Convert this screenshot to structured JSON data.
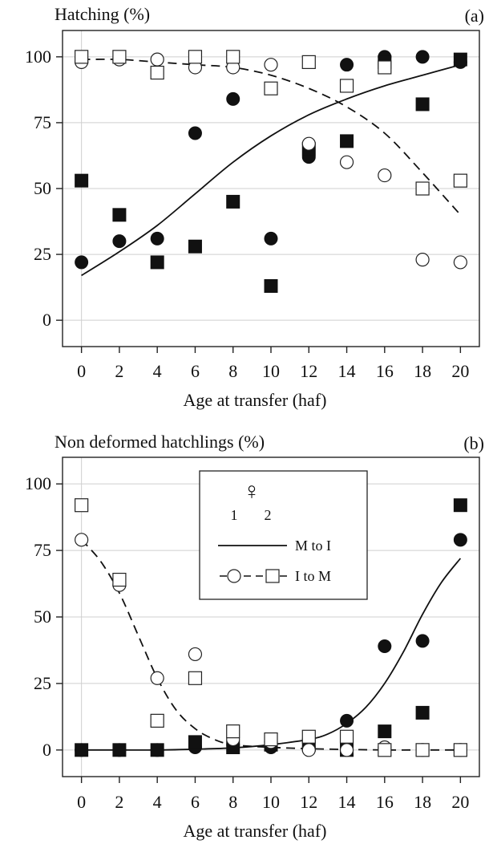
{
  "chart_data": [
    {
      "type": "scatter",
      "panel_label": "(a)",
      "title": "Hatching (%)",
      "xlabel": "Age at transfer (haf)",
      "ylabel": "",
      "xlim": [
        -1,
        21
      ],
      "ylim": [
        -10,
        110
      ],
      "xticks": [
        0,
        2,
        4,
        6,
        8,
        10,
        12,
        14,
        16,
        18,
        20
      ],
      "yticks": [
        0,
        25,
        50,
        75,
        100
      ],
      "grid": true,
      "series": [
        {
          "marker": "filled-circle",
          "group": "M to I",
          "sex": "1",
          "x": [
            0,
            2,
            4,
            6,
            8,
            10,
            12,
            14,
            16,
            18,
            20
          ],
          "y": [
            22,
            30,
            31,
            71,
            84,
            31,
            62,
            97,
            100,
            100,
            98
          ]
        },
        {
          "marker": "filled-square",
          "group": "M to I",
          "sex": "2",
          "x": [
            0,
            2,
            4,
            6,
            8,
            10,
            12,
            14,
            16,
            18,
            20
          ],
          "y": [
            53,
            40,
            22,
            28,
            45,
            13,
            65,
            68,
            98,
            82,
            99
          ]
        },
        {
          "marker": "open-circle",
          "group": "I to M",
          "sex": "1",
          "x": [
            0,
            2,
            4,
            6,
            8,
            10,
            12,
            14,
            16,
            18,
            20
          ],
          "y": [
            98,
            99,
            99,
            96,
            96,
            97,
            67,
            60,
            55,
            23,
            22
          ]
        },
        {
          "marker": "open-square",
          "group": "I to M",
          "sex": "2",
          "x": [
            0,
            2,
            4,
            6,
            8,
            10,
            12,
            14,
            16,
            18,
            20
          ],
          "y": [
            100,
            100,
            94,
            100,
            100,
            88,
            98,
            89,
            96,
            50,
            53
          ]
        }
      ],
      "fits": [
        {
          "style": "solid",
          "group": "M to I",
          "x": [
            0,
            2,
            4,
            6,
            8,
            10,
            12,
            14,
            16,
            18,
            20
          ],
          "y": [
            17,
            26,
            36,
            48,
            60,
            70,
            78,
            84,
            89,
            93,
            97
          ]
        },
        {
          "style": "dashed",
          "group": "I to M",
          "x": [
            0,
            2,
            4,
            6,
            8,
            10,
            12,
            14,
            16,
            18,
            20
          ],
          "y": [
            99,
            99,
            98,
            97,
            96,
            93,
            88,
            81,
            71,
            56,
            40
          ]
        }
      ]
    },
    {
      "type": "scatter",
      "panel_label": "(b)",
      "title": "Non deformed hatchlings (%)",
      "xlabel": "Age at transfer (haf)",
      "ylabel": "",
      "xlim": [
        -1,
        21
      ],
      "ylim": [
        -10,
        110
      ],
      "xticks": [
        0,
        2,
        4,
        6,
        8,
        10,
        12,
        14,
        16,
        18,
        20
      ],
      "yticks": [
        0,
        25,
        50,
        75,
        100
      ],
      "grid": true,
      "legend": {
        "placement": "top-center",
        "symbol": "♀",
        "sex_labels": [
          "1",
          "2"
        ],
        "entries": [
          {
            "label": "M to I",
            "style": "solid"
          },
          {
            "label": "I to M",
            "style": "dashed"
          }
        ]
      },
      "series": [
        {
          "marker": "filled-circle",
          "group": "M to I",
          "sex": "1",
          "x": [
            0,
            2,
            4,
            6,
            8,
            10,
            12,
            14,
            16,
            18,
            20
          ],
          "y": [
            0,
            0,
            0,
            1,
            2,
            1,
            1,
            11,
            39,
            41,
            79
          ]
        },
        {
          "marker": "filled-square",
          "group": "M to I",
          "sex": "2",
          "x": [
            0,
            2,
            4,
            6,
            8,
            10,
            12,
            14,
            16,
            18,
            20
          ],
          "y": [
            0,
            0,
            0,
            3,
            1,
            2,
            2,
            0,
            7,
            14,
            92
          ]
        },
        {
          "marker": "open-circle",
          "group": "I to M",
          "sex": "1",
          "x": [
            0,
            2,
            4,
            6,
            8,
            10,
            12,
            14,
            16,
            18,
            20
          ],
          "y": [
            79,
            62,
            27,
            36,
            4,
            3,
            0,
            0,
            1,
            0,
            0
          ]
        },
        {
          "marker": "open-square",
          "group": "I to M",
          "sex": "2",
          "x": [
            0,
            2,
            4,
            6,
            8,
            10,
            12,
            14,
            16,
            18,
            20
          ],
          "y": [
            92,
            64,
            11,
            27,
            7,
            4,
            5,
            5,
            0,
            0,
            0
          ]
        }
      ],
      "fits": [
        {
          "style": "solid",
          "group": "M to I",
          "x": [
            0,
            2,
            4,
            6,
            8,
            10,
            12,
            13,
            14,
            15,
            16,
            17,
            18,
            19,
            20
          ],
          "y": [
            0,
            0,
            0,
            0.3,
            0.8,
            2,
            4,
            6,
            10,
            16,
            25,
            37,
            51,
            63,
            72
          ]
        },
        {
          "style": "dashed",
          "group": "I to M",
          "x": [
            0,
            1,
            2,
            3,
            4,
            5,
            6,
            7,
            8,
            10,
            12,
            14,
            16,
            18,
            20
          ],
          "y": [
            79,
            71,
            59,
            43,
            27,
            15,
            8,
            4,
            2,
            1,
            0.5,
            0.2,
            0,
            0,
            0
          ]
        }
      ]
    }
  ]
}
